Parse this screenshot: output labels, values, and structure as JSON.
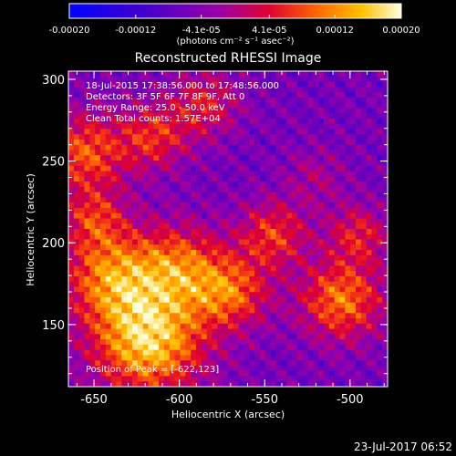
{
  "chart_data": {
    "type": "heatmap",
    "title": "Reconstructed RHESSI Image",
    "xlabel": "Heliocentric X (arcsec)",
    "ylabel": "Heliocentric Y (arcsec)",
    "xlim": [
      -665,
      -478
    ],
    "ylim": [
      112,
      305
    ],
    "x_ticks": [
      -650,
      -600,
      -550,
      -500
    ],
    "x_tick_labels": [
      "-650",
      "-600",
      "-550",
      "-500"
    ],
    "y_ticks": [
      150,
      200,
      250,
      300
    ],
    "y_tick_labels": [
      "150",
      "200",
      "250",
      "300"
    ],
    "colorbar": {
      "ticks": [
        -0.0002,
        -0.00012,
        -4.1e-05,
        4.1e-05,
        0.00012,
        0.0002
      ],
      "tick_labels": [
        "-0.00020",
        "-0.00012",
        "-4.1e-05",
        "4.1e-05",
        "0.00012",
        "0.00020"
      ],
      "range": [
        -0.0002,
        0.0002
      ],
      "units_line": "(photons cm⁻² s⁻¹ asec⁻²)"
    },
    "annotations": [
      "18-Jul-2015 17:38:56.000 to 17:48:56.000",
      "Detectors: 3F 5F 6F 7F 8F 9F, Att 0",
      "Energy Range: 25.0 - 50.0 keV",
      "Clean     Total counts: 1.57E+04"
    ],
    "peak_label": "Position of Peak = [-622,123]",
    "peak_position": [
      -622,
      123
    ],
    "timestamp": "23-Jul-2017 06:52"
  }
}
